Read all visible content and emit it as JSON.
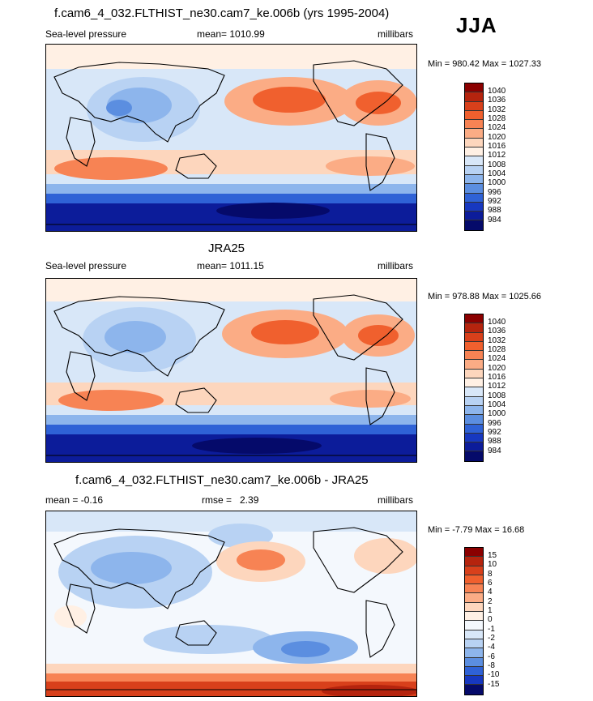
{
  "season": "JJA",
  "panels": [
    {
      "title": "f.cam6_4_032.FLTHIST_ne30.cam7_ke.006b (yrs 1995-2004)",
      "left": "Sea-level pressure",
      "center": "mean= 1010.99",
      "right": "millibars",
      "minmax": "Min = 980.42 Max = 1027.33",
      "kind": "abs",
      "levels": [
        "1040",
        "1036",
        "1032",
        "1028",
        "1024",
        "1020",
        "1016",
        "1012",
        "1008",
        "1004",
        "1000",
        "996",
        "992",
        "988",
        "984"
      ]
    },
    {
      "title": "JRA25",
      "left": "Sea-level pressure",
      "center": "mean= 1011.15",
      "right": "millibars",
      "minmax": "Min = 978.88 Max = 1025.66",
      "kind": "abs",
      "levels": [
        "1040",
        "1036",
        "1032",
        "1028",
        "1024",
        "1020",
        "1016",
        "1012",
        "1008",
        "1004",
        "1000",
        "996",
        "992",
        "988",
        "984"
      ]
    },
    {
      "title": "f.cam6_4_032.FLTHIST_ne30.cam7_ke.006b - JRA25",
      "left": "mean =  -0.16",
      "center": "rmse =   2.39",
      "right": "millibars",
      "minmax": "Min =  -7.79 Max =  16.68",
      "kind": "diff",
      "levels": [
        "15",
        "10",
        "8",
        "6",
        "4",
        "2",
        "1",
        "0",
        "-1",
        "-2",
        "-4",
        "-6",
        "-8",
        "-10",
        "-15"
      ]
    }
  ],
  "colors": {
    "abs": [
      "#8b0000",
      "#b5240e",
      "#d8401b",
      "#f0602e",
      "#f78354",
      "#fbac85",
      "#fdd6bd",
      "#fff0e4",
      "#d8e7f8",
      "#b8d2f3",
      "#8db5ec",
      "#5b8ee0",
      "#2f62d6",
      "#1738c0",
      "#0c1c9a",
      "#050a6a"
    ],
    "diff": [
      "#8b0000",
      "#b5240e",
      "#d8401b",
      "#f0602e",
      "#f78354",
      "#fbac85",
      "#fdd6bd",
      "#fff0e4",
      "#f4f8fd",
      "#d8e7f8",
      "#b8d2f3",
      "#8db5ec",
      "#5b8ee0",
      "#2f62d6",
      "#1738c0",
      "#050a6a"
    ]
  }
}
